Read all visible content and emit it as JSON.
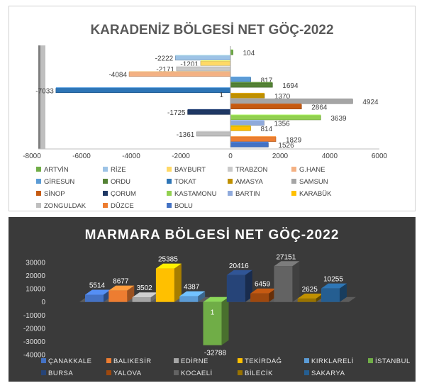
{
  "chart_data": [
    {
      "type": "bar",
      "orientation": "horizontal",
      "title": "KARADENİZ BÖLGESİ NET GÖÇ-2022",
      "xlim": [
        -8000,
        6000
      ],
      "xticks": [
        "-8000",
        "-6000",
        "-4000",
        "-2000",
        "0",
        "2000",
        "4000",
        "6000"
      ],
      "legend_position": "bottom",
      "series": [
        {
          "name": "ARTVİN",
          "value": 104,
          "label": "104",
          "color": "#70ad47"
        },
        {
          "name": "RİZE",
          "value": -2222,
          "label": "-2222",
          "color": "#9dc3e6"
        },
        {
          "name": "BAYBURT",
          "value": -1201,
          "label": "-1201",
          "color": "#ffd966"
        },
        {
          "name": "TRABZON",
          "value": -2171,
          "label": "-2171",
          "color": "#c9c9c9"
        },
        {
          "name": "G.HANE",
          "value": -4084,
          "label": "-4084",
          "color": "#f4b183"
        },
        {
          "name": "GİRESUN",
          "value": 817,
          "label": "817",
          "color": "#5b9bd5"
        },
        {
          "name": "ORDU",
          "value": 1694,
          "label": "1694",
          "color": "#548235"
        },
        {
          "name": "TOKAT",
          "value": -7033,
          "label": "-7033",
          "color": "#2e75b6"
        },
        {
          "name": "AMASYA",
          "value": 1370,
          "label": "1370",
          "color": "#bf9000"
        },
        {
          "name": "SAMSUN",
          "value": 4924,
          "label": "4924",
          "color": "#a5a5a5"
        },
        {
          "name": "SİNOP",
          "value": 2864,
          "label": "2864",
          "color": "#c55a11"
        },
        {
          "name": "ÇORUM",
          "value": -1725,
          "label": "-1725",
          "color": "#1f3864"
        },
        {
          "name": "KASTAMONU",
          "value": 3639,
          "label": "3639",
          "color": "#92d050"
        },
        {
          "name": "BARTIN",
          "value": 1356,
          "label": "1356",
          "color": "#8faadc"
        },
        {
          "name": "KARABÜK",
          "value": 814,
          "label": "814",
          "color": "#ffc000"
        },
        {
          "name": "ZONGULDAK",
          "value": -1361,
          "label": "-1361",
          "color": "#bfbfbf"
        },
        {
          "name": "DÜZCE",
          "value": 1829,
          "label": "1829",
          "color": "#ed7d31"
        },
        {
          "name": "BOLU",
          "value": 1526,
          "label": "1526",
          "color": "#4472c4"
        }
      ],
      "extra_label": "1"
    },
    {
      "type": "bar",
      "orientation": "vertical",
      "style": "3d",
      "title": "MARMARA BÖLGESİ NET GÖÇ-2022",
      "ylim": [
        -40000,
        30000
      ],
      "yticks": [
        "30000",
        "20000",
        "10000",
        "0",
        "-10000",
        "-20000",
        "-30000",
        "-40000"
      ],
      "legend_position": "bottom",
      "series": [
        {
          "name": "ÇANAKKALE",
          "value": 5514,
          "label": "5514",
          "color": "#4472c4"
        },
        {
          "name": "BALIKESİR",
          "value": 8677,
          "label": "8677",
          "color": "#ed7d31"
        },
        {
          "name": "EDİRNE",
          "value": 3502,
          "label": "3502",
          "color": "#a5a5a5"
        },
        {
          "name": "TEKİRDAĞ",
          "value": 25385,
          "label": "25385",
          "color": "#ffc000"
        },
        {
          "name": "KIRKLARELİ",
          "value": 4387,
          "label": "4387",
          "color": "#5b9bd5"
        },
        {
          "name": "İSTANBUL",
          "value": -32788,
          "label": "-32788",
          "color": "#70ad47"
        },
        {
          "name": "BURSA",
          "value": 20416,
          "label": "20416",
          "color": "#264478"
        },
        {
          "name": "YALOVA",
          "value": 6459,
          "label": "6459",
          "color": "#9e480e"
        },
        {
          "name": "KOCAELİ",
          "value": 27151,
          "label": "27151",
          "color": "#636363"
        },
        {
          "name": "BİLECİK",
          "value": 2625,
          "label": "2625",
          "color": "#997300"
        },
        {
          "name": "SAKARYA",
          "value": 10255,
          "label": "10255",
          "color": "#255e91"
        }
      ],
      "extra_label": "1"
    }
  ]
}
